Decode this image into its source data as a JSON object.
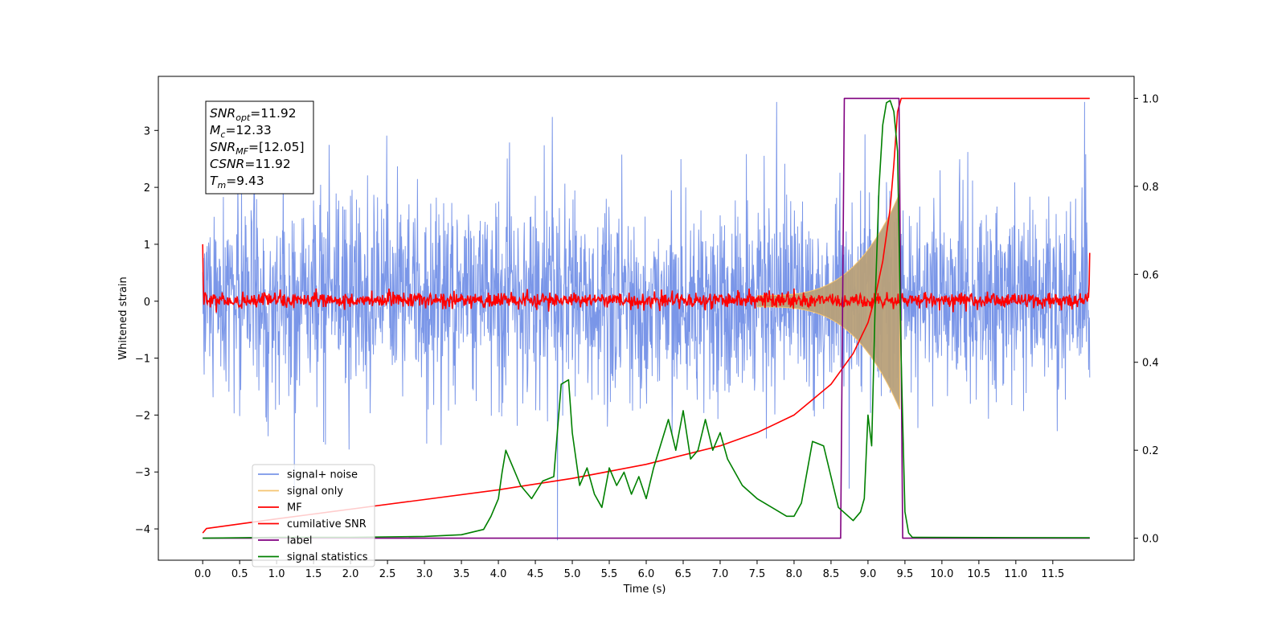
{
  "chart_data": {
    "type": "line",
    "xlabel": "Time (s)",
    "ylabel": "Whitened strain",
    "xlim": [
      -0.6,
      12.6
    ],
    "ylim": [
      -4.55,
      3.95
    ],
    "y2lim": [
      -0.05,
      1.05
    ],
    "xticks": [
      "0.0",
      "0.5",
      "1.0",
      "1.5",
      "2.0",
      "2.5",
      "3.0",
      "3.5",
      "4.0",
      "4.5",
      "5.0",
      "5.5",
      "6.0",
      "6.5",
      "7.0",
      "7.5",
      "8.0",
      "8.5",
      "9.0",
      "9.5",
      "10.0",
      "10.5",
      "11.0",
      "11.5"
    ],
    "yticks": [
      "3",
      "2",
      "1",
      "0",
      "−1",
      "−2",
      "−3",
      "−4"
    ],
    "y2ticks": [
      "0.0",
      "0.2",
      "0.4",
      "0.6",
      "0.8",
      "1.0"
    ],
    "grid": false,
    "legend_position": "lower-left",
    "annotation": {
      "lines": [
        {
          "sym": "SNR",
          "sub": "opt",
          "val": "=11.92"
        },
        {
          "sym": "M",
          "sub": "c",
          "val": "=12.33"
        },
        {
          "sym": "SNR",
          "sub": "MF",
          "val": "=[12.05]"
        },
        {
          "sym": "CSNR",
          "sub": "",
          "val": "=11.92"
        },
        {
          "sym": "T",
          "sub": "m",
          "val": "=9.43"
        }
      ]
    },
    "series": [
      {
        "name": "signal+ noise",
        "color": "#7a96e8",
        "axis": "left",
        "description": "noisy whitened strain, amplitude roughly -2 to +2.5 with spikes to about 3.5 and -4.2 (at t=4.8)",
        "x_range": [
          0.0,
          12.0
        ]
      },
      {
        "name": "signal only",
        "color": "#f5c470",
        "axis": "left",
        "description": "chirp whose envelope grows from ~0.1 at t=7.5 to ~1.9 at t=9.43, then ends",
        "x_range": [
          7.5,
          9.43
        ]
      },
      {
        "name": "MF",
        "color": "#ff0000",
        "axis": "left",
        "description": "matched filter output, noise band about -0.2 to +0.25 around 0, with edge excursions to ~1 at t=0"
      },
      {
        "name": "cumilative SNR",
        "color": "#ff0000",
        "axis": "right",
        "x": [
          0.0,
          0.05,
          1.0,
          2.0,
          3.0,
          4.0,
          5.0,
          6.0,
          7.0,
          7.5,
          8.0,
          8.5,
          8.8,
          9.0,
          9.1,
          9.2,
          9.3,
          9.35,
          9.4,
          9.45,
          12.0
        ],
        "values": [
          0.012,
          0.022,
          0.044,
          0.066,
          0.088,
          0.11,
          0.136,
          0.168,
          0.21,
          0.24,
          0.28,
          0.35,
          0.42,
          0.49,
          0.55,
          0.63,
          0.75,
          0.85,
          0.97,
          1.0,
          1.0
        ]
      },
      {
        "name": "label",
        "color": "#800080",
        "axis": "right",
        "x": [
          0.0,
          8.63,
          8.68,
          9.42,
          9.47,
          12.0
        ],
        "values": [
          0.0,
          0.0,
          1.0,
          1.0,
          0.0,
          0.0
        ]
      },
      {
        "name": "signal statistics",
        "color": "#008000",
        "axis": "right",
        "x": [
          0.0,
          1.0,
          2.0,
          3.0,
          3.5,
          3.8,
          3.9,
          4.0,
          4.05,
          4.1,
          4.2,
          4.3,
          4.45,
          4.6,
          4.75,
          4.85,
          4.95,
          5.0,
          5.1,
          5.2,
          5.3,
          5.4,
          5.5,
          5.6,
          5.7,
          5.8,
          5.9,
          6.0,
          6.1,
          6.3,
          6.4,
          6.5,
          6.6,
          6.7,
          6.8,
          6.9,
          7.0,
          7.1,
          7.3,
          7.5,
          7.7,
          7.9,
          8.0,
          8.1,
          8.25,
          8.4,
          8.6,
          8.8,
          8.9,
          8.95,
          9.0,
          9.05,
          9.1,
          9.15,
          9.2,
          9.25,
          9.3,
          9.35,
          9.4,
          9.45,
          9.5,
          9.55,
          9.6,
          12.0
        ],
        "values": [
          0.0,
          0.002,
          0.002,
          0.004,
          0.008,
          0.02,
          0.05,
          0.09,
          0.15,
          0.2,
          0.16,
          0.12,
          0.09,
          0.13,
          0.14,
          0.35,
          0.36,
          0.24,
          0.12,
          0.16,
          0.1,
          0.07,
          0.16,
          0.12,
          0.15,
          0.1,
          0.14,
          0.09,
          0.16,
          0.27,
          0.2,
          0.29,
          0.18,
          0.2,
          0.27,
          0.2,
          0.24,
          0.18,
          0.12,
          0.09,
          0.07,
          0.05,
          0.05,
          0.08,
          0.22,
          0.21,
          0.07,
          0.04,
          0.06,
          0.09,
          0.28,
          0.21,
          0.55,
          0.8,
          0.94,
          0.99,
          0.995,
          0.97,
          0.88,
          0.4,
          0.06,
          0.012,
          0.002,
          0.001
        ]
      }
    ]
  }
}
